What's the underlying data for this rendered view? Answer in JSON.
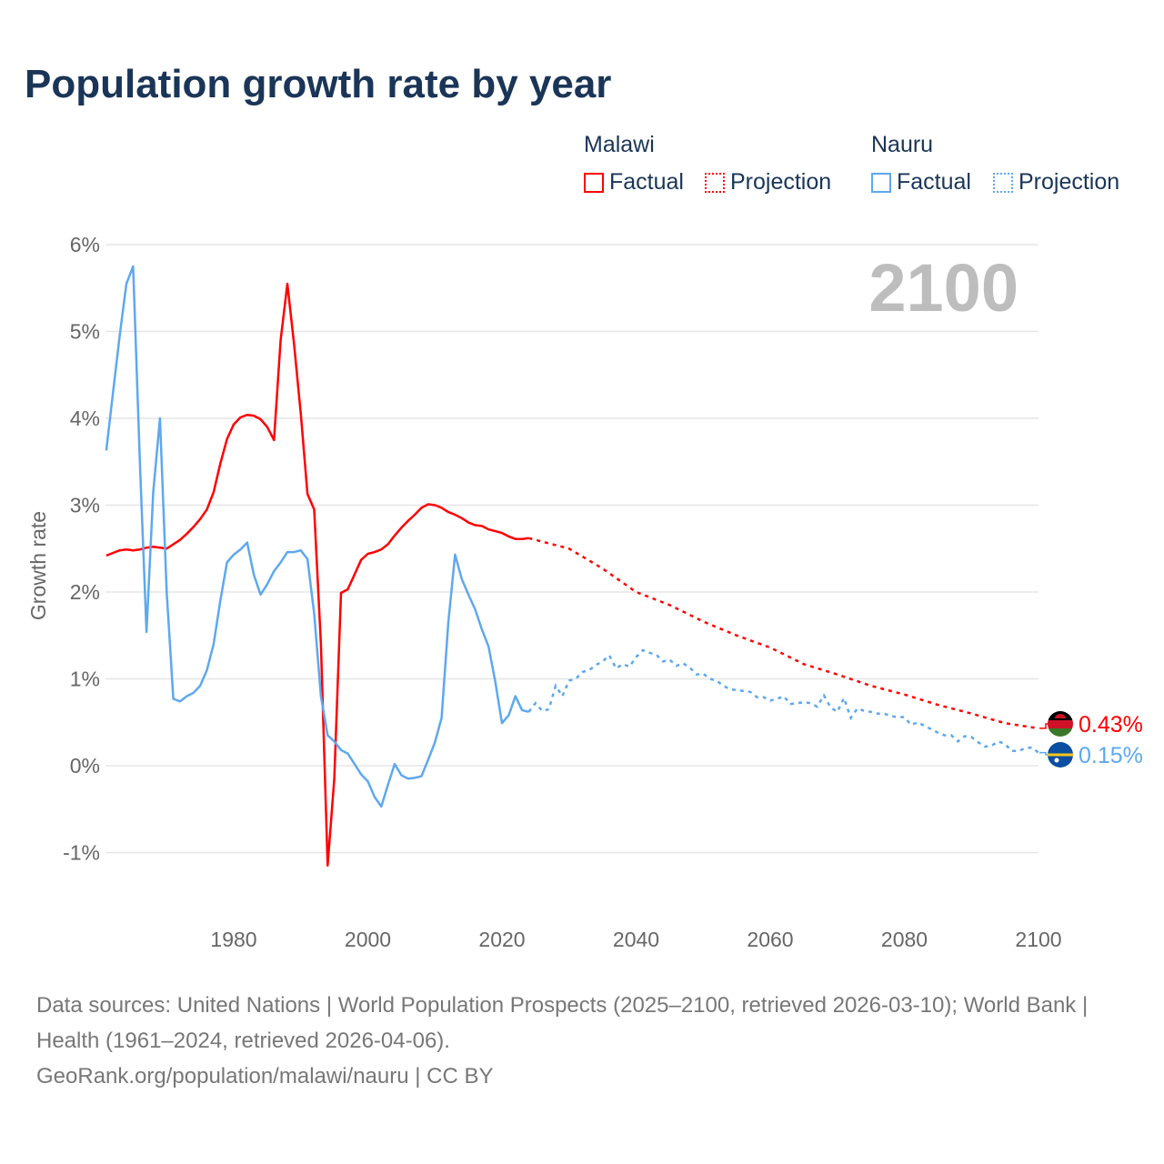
{
  "title": "Population growth rate by year",
  "legend": {
    "groups": [
      {
        "name": "Malawi",
        "factual": "Factual",
        "projection": "Projection",
        "color": "#ff0000"
      },
      {
        "name": "Nauru",
        "factual": "Factual",
        "projection": "Projection",
        "color": "#5ea8ee"
      }
    ]
  },
  "year_watermark": "2100",
  "footer": {
    "sources": "Data sources: United Nations | World Population Prospects (2025–2100, retrieved 2026-03-10); World Bank | Health (1961–2024, retrieved 2026-04-06).",
    "link": "GeoRank.org/population/malawi/nauru | CC BY"
  },
  "chart_data": {
    "type": "line",
    "title": "Population growth rate by year",
    "xlabel": "",
    "ylabel": "Growth rate",
    "xlim": [
      1961,
      2100
    ],
    "ylim": [
      -1,
      6
    ],
    "xticks": [
      1980,
      2000,
      2020,
      2040,
      2060,
      2080,
      2100
    ],
    "yticks": [
      -1,
      0,
      1,
      2,
      3,
      4,
      5,
      6
    ],
    "ytick_labels": [
      "-1%",
      "0%",
      "1%",
      "2%",
      "3%",
      "4%",
      "5%",
      "6%"
    ],
    "grid": true,
    "series": [
      {
        "name": "Malawi",
        "color": "#ff0000",
        "end_label": "0.43%",
        "factual": {
          "start": 1961,
          "values": [
            2.42,
            2.45,
            2.48,
            2.49,
            2.48,
            2.49,
            2.51,
            2.52,
            2.51,
            2.5,
            2.55,
            2.6,
            2.67,
            2.75,
            2.84,
            2.95,
            3.15,
            3.48,
            3.76,
            3.93,
            4.01,
            4.04,
            4.03,
            3.99,
            3.9,
            3.75,
            4.9,
            5.55,
            4.85,
            4.05,
            3.13,
            2.95,
            1.4,
            -1.15,
            -0.15,
            1.99,
            2.03,
            2.2,
            2.37,
            2.44,
            2.46,
            2.49,
            2.55,
            2.65,
            2.74,
            2.82,
            2.89,
            2.97,
            3.01,
            3.0,
            2.97,
            2.92,
            2.89,
            2.85,
            2.8,
            2.77,
            2.76,
            2.72,
            2.7,
            2.68,
            2.64,
            2.61,
            2.61,
            2.62
          ]
        },
        "projection": {
          "years": [
            2024,
            2025,
            2030,
            2035,
            2040,
            2045,
            2050,
            2055,
            2060,
            2065,
            2070,
            2075,
            2080,
            2085,
            2090,
            2095,
            2100
          ],
          "values": [
            2.62,
            2.6,
            2.5,
            2.27,
            2.0,
            1.85,
            1.66,
            1.5,
            1.36,
            1.17,
            1.05,
            0.92,
            0.82,
            0.7,
            0.6,
            0.49,
            0.43
          ]
        }
      },
      {
        "name": "Nauru",
        "color": "#5ea8ee",
        "end_label": "0.15%",
        "factual": {
          "start": 1961,
          "values": [
            3.63,
            4.3,
            4.95,
            5.55,
            5.75,
            3.5,
            1.54,
            3.15,
            4.0,
            2.0,
            0.77,
            0.74,
            0.8,
            0.84,
            0.92,
            1.1,
            1.4,
            1.9,
            2.34,
            2.43,
            2.49,
            2.57,
            2.2,
            1.97,
            2.09,
            2.24,
            2.34,
            2.46,
            2.46,
            2.48,
            2.38,
            1.75,
            0.8,
            0.35,
            0.28,
            0.18,
            0.14,
            0.02,
            -0.1,
            -0.18,
            -0.36,
            -0.47,
            -0.22,
            0.02,
            -0.11,
            -0.15,
            -0.14,
            -0.12,
            0.07,
            0.27,
            0.55,
            1.65,
            2.43,
            2.15,
            1.97,
            1.8,
            1.57,
            1.37,
            0.97,
            0.49,
            0.58,
            0.8,
            0.64,
            0.62
          ]
        },
        "projection": {
          "start": 2024,
          "values": [
            0.62,
            0.72,
            0.63,
            0.65,
            0.92,
            0.8,
            0.98,
            1.0,
            1.08,
            1.1,
            1.16,
            1.2,
            1.27,
            1.12,
            1.17,
            1.14,
            1.25,
            1.33,
            1.3,
            1.28,
            1.2,
            1.22,
            1.15,
            1.18,
            1.13,
            1.05,
            1.06,
            1.0,
            0.98,
            0.92,
            0.88,
            0.87,
            0.86,
            0.85,
            0.79,
            0.79,
            0.75,
            0.77,
            0.8,
            0.71,
            0.72,
            0.73,
            0.72,
            0.68,
            0.81,
            0.67,
            0.62,
            0.78,
            0.55,
            0.66,
            0.63,
            0.62,
            0.6,
            0.6,
            0.57,
            0.56,
            0.56,
            0.47,
            0.5,
            0.46,
            0.42,
            0.38,
            0.35,
            0.35,
            0.28,
            0.34,
            0.33,
            0.27,
            0.22,
            0.23,
            0.28,
            0.25,
            0.17,
            0.17,
            0.2,
            0.21,
            0.15
          ]
        }
      }
    ]
  }
}
